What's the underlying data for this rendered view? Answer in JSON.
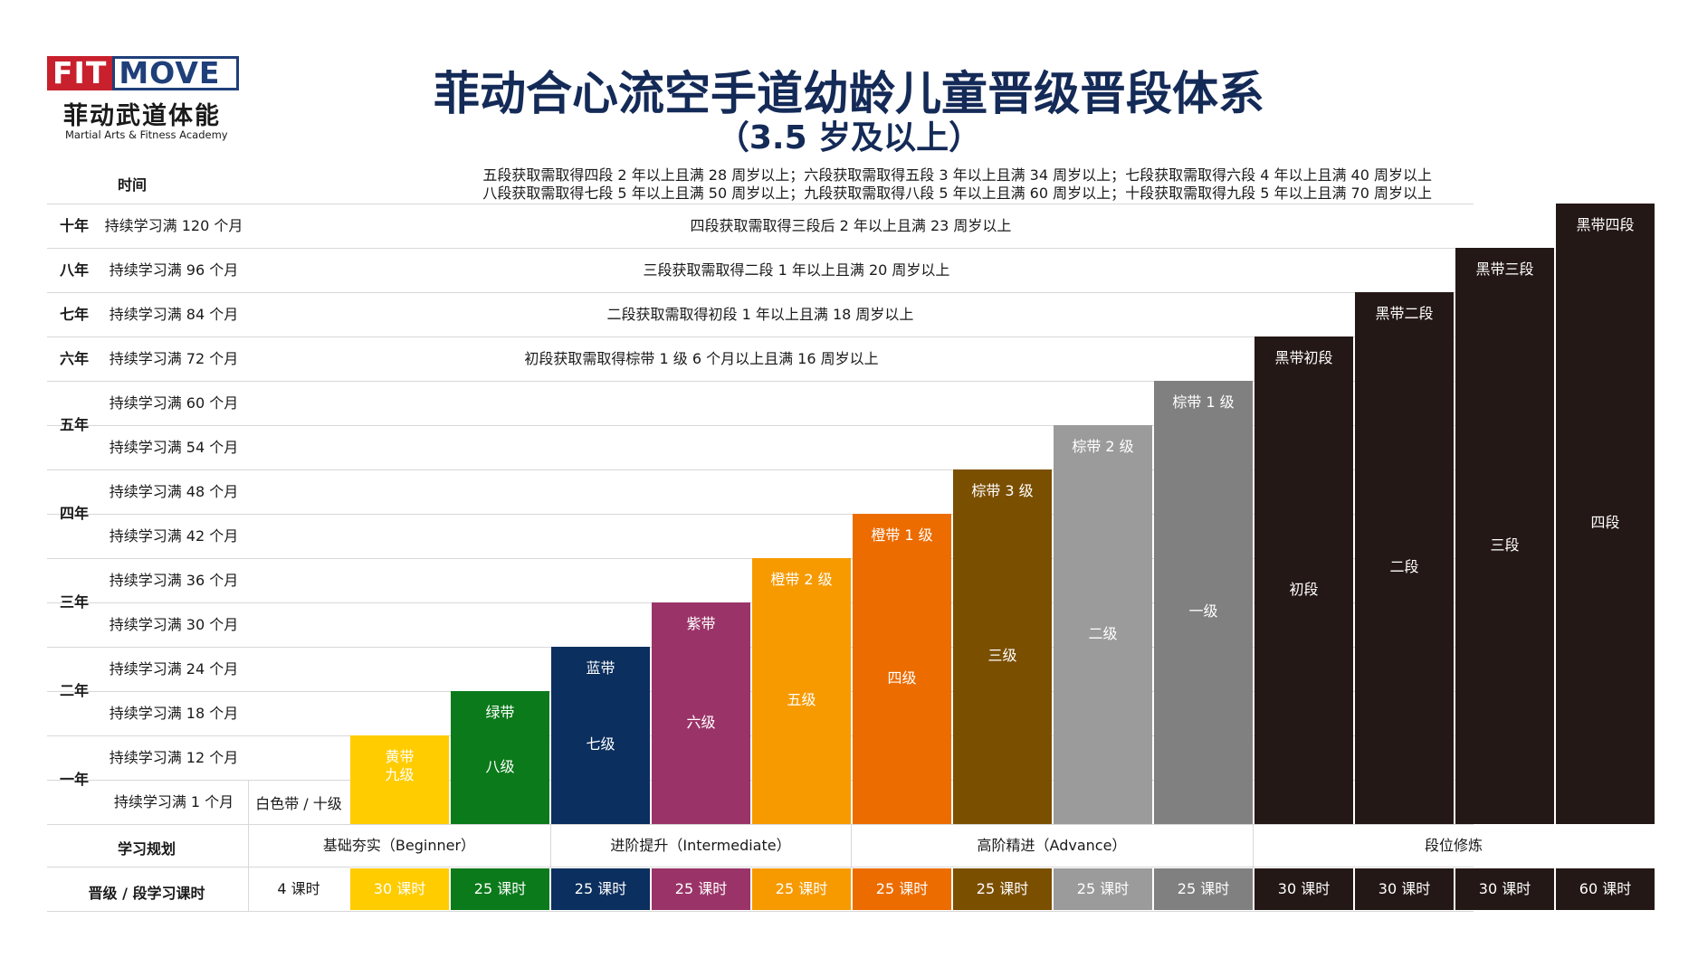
{
  "logo": {
    "fit": "FIT",
    "move": "MOVE",
    "cn": "菲动武道体能",
    "en": "Martial Arts & Fitness Academy"
  },
  "title": "菲动合心流空手道幼龄儿童晋级晋段体系",
  "subtitle": "（3.5 岁及以上）",
  "time_label": "时间",
  "notes": [
    "五段获取需取得四段 2 年以上且满 28 周岁以上；六段获取需取得五段 3 年以上且满 34 周岁以上；七段获取需取得六段 4 年以上且满 40 周岁以上",
    "八段获取需取得七段 5 年以上且满 50 周岁以上；九段获取需取得八段 5 年以上且满 60 周岁以上；十段获取需取得九段 5 年以上且满 70 周岁以上"
  ],
  "rows": [
    {
      "year": "十年",
      "month": "持续学习满 120 个月",
      "requirement": "四段获取需取得三段后 2 年以上且满 23 周岁以上"
    },
    {
      "year": "八年",
      "month": "持续学习满 96 个月",
      "requirement": "三段获取需取得二段 1 年以上且满 20 周岁以上"
    },
    {
      "year": "七年",
      "month": "持续学习满 84 个月",
      "requirement": "二段获取需取得初段 1 年以上且满 18 周岁以上"
    },
    {
      "year": "六年",
      "month": "持续学习满 72 个月",
      "requirement": "初段获取需取得棕带 1 级 6 个月以上且满 16 周岁以上"
    },
    {
      "year": "五年",
      "month": "持续学习满 60 个月",
      "requirement": ""
    },
    {
      "year": "",
      "month": "持续学习满 54 个月",
      "requirement": ""
    },
    {
      "year": "四年",
      "month": "持续学习满 48 个月",
      "requirement": ""
    },
    {
      "year": "",
      "month": "持续学习满 42 个月",
      "requirement": ""
    },
    {
      "year": "三年",
      "month": "持续学习满 36 个月",
      "requirement": ""
    },
    {
      "year": "",
      "month": "持续学习满 30 个月",
      "requirement": ""
    },
    {
      "year": "二年",
      "month": "持续学习满 24 个月",
      "requirement": ""
    },
    {
      "year": "",
      "month": "持续学习满 18 个月",
      "requirement": ""
    },
    {
      "year": "一年",
      "month": "持续学习满 12 个月",
      "requirement": ""
    },
    {
      "year": "",
      "month": "持续学习满 1 个月",
      "requirement": ""
    }
  ],
  "white_belt": "白色带 / 十级",
  "belts": [
    {
      "name": "黄带",
      "grade": "九级",
      "color": "#ffcc00",
      "months": 12,
      "hours": "30 课时"
    },
    {
      "name": "绿带",
      "grade": "八级",
      "color": "#0b7a1b",
      "months": 18,
      "hours": "25 课时"
    },
    {
      "name": "蓝带",
      "grade": "七级",
      "color": "#0b2f5e",
      "months": 24,
      "hours": "25 课时"
    },
    {
      "name": "紫带",
      "grade": "六级",
      "color": "#9a3468",
      "months": 30,
      "hours": "25 课时"
    },
    {
      "name": "橙带 2 级",
      "grade": "五级",
      "color": "#f79a00",
      "months": 36,
      "hours": "25 课时"
    },
    {
      "name": "橙带 1 级",
      "grade": "四级",
      "color": "#ec6c00",
      "months": 42,
      "hours": "25 课时"
    },
    {
      "name": "棕带 3 级",
      "grade": "三级",
      "color": "#7b4f00",
      "months": 48,
      "hours": "25 课时"
    },
    {
      "name": "棕带 2 级",
      "grade": "二级",
      "color": "#9b9b9b",
      "months": 54,
      "hours": "25 课时"
    },
    {
      "name": "棕带 1 级",
      "grade": "一级",
      "color": "#808080",
      "months": 60,
      "hours": "25 课时"
    },
    {
      "name": "黑带初段",
      "grade": "初段",
      "color": "#241816",
      "months": 72,
      "hours": "30 课时"
    },
    {
      "name": "黑带二段",
      "grade": "二段",
      "color": "#241816",
      "months": 84,
      "hours": "30 课时"
    },
    {
      "name": "黑带三段",
      "grade": "三段",
      "color": "#241816",
      "months": 96,
      "hours": "30 课时"
    },
    {
      "name": "黑带四段",
      "grade": "四段",
      "color": "#241816",
      "months": 120,
      "hours": "60 课时"
    }
  ],
  "plan_label": "学习规划",
  "plans": [
    "基础夯实（Beginner）",
    "进阶提升（Intermediate）",
    "高阶精进（Advance）",
    "段位修炼"
  ],
  "hours_label": "晋级 / 段学习课时",
  "white_hours": "4 课时"
}
